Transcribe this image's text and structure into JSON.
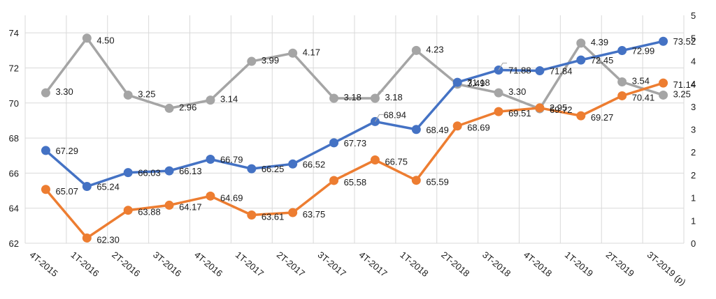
{
  "chart_data": {
    "type": "line",
    "categories": [
      "4T-2015",
      "1T-2016",
      "2T-2016",
      "3T-2016",
      "4T-2016",
      "1T-2017",
      "2T-2017",
      "3T-2017",
      "4T-2017",
      "1T-2018",
      "2T-2018",
      "3T-2018",
      "4T-2018",
      "1T-2019",
      "2T-2019",
      "3T-2019 (p)"
    ],
    "left_axis": {
      "ylim": [
        62,
        75
      ],
      "ticks": [
        "62",
        "64",
        "66",
        "68",
        "70",
        "72",
        "74"
      ]
    },
    "right_axis": {
      "ylim": [
        0,
        5
      ],
      "ticks": [
        "0",
        "1",
        "1",
        "2",
        "2",
        "3",
        "3",
        "4",
        "4",
        "5",
        "5"
      ]
    },
    "grid": true,
    "legend": "none",
    "series": [
      {
        "name": "Blue series",
        "axis": "left",
        "color": "#4472C4",
        "values": [
          67.29,
          65.24,
          66.03,
          66.13,
          66.79,
          66.25,
          66.52,
          67.73,
          68.94,
          68.49,
          71.18,
          71.88,
          71.84,
          72.45,
          72.99,
          73.52
        ],
        "labels": [
          "67.29",
          "65.24",
          "66.03",
          "66.13",
          "66.79",
          "66.25",
          "66.52",
          "67.73",
          "68.94",
          "68.49",
          "71.18",
          "71.88",
          "71.84",
          "72.45",
          "72.99",
          "73.52"
        ]
      },
      {
        "name": "Orange series",
        "axis": "left",
        "color": "#ED7D31",
        "values": [
          65.07,
          62.3,
          63.88,
          64.17,
          64.69,
          63.61,
          63.75,
          65.58,
          66.75,
          65.59,
          68.69,
          69.51,
          69.72,
          69.27,
          70.41,
          71.14
        ],
        "labels": [
          "65.07",
          "62.30",
          "63.88",
          "64.17",
          "64.69",
          "63.61",
          "63.75",
          "65.58",
          "66.75",
          "65.59",
          "68.69",
          "69.51",
          "69.72",
          "69.27",
          "70.41",
          "71.14"
        ]
      },
      {
        "name": "Gray series",
        "axis": "right",
        "color": "#A5A5A5",
        "values": [
          3.3,
          4.5,
          3.25,
          2.96,
          3.14,
          3.99,
          4.17,
          3.18,
          3.18,
          4.23,
          3.49,
          3.3,
          2.95,
          4.39,
          3.54,
          3.25
        ],
        "labels": [
          "3.30",
          "4.50",
          "3.25",
          "2.96",
          "3.14",
          "3.99",
          "4.17",
          "3.18",
          "3.18",
          "4.23",
          "3.49",
          "3.30",
          "2.95",
          "4.39",
          "3.54",
          "3.25"
        ]
      }
    ]
  }
}
